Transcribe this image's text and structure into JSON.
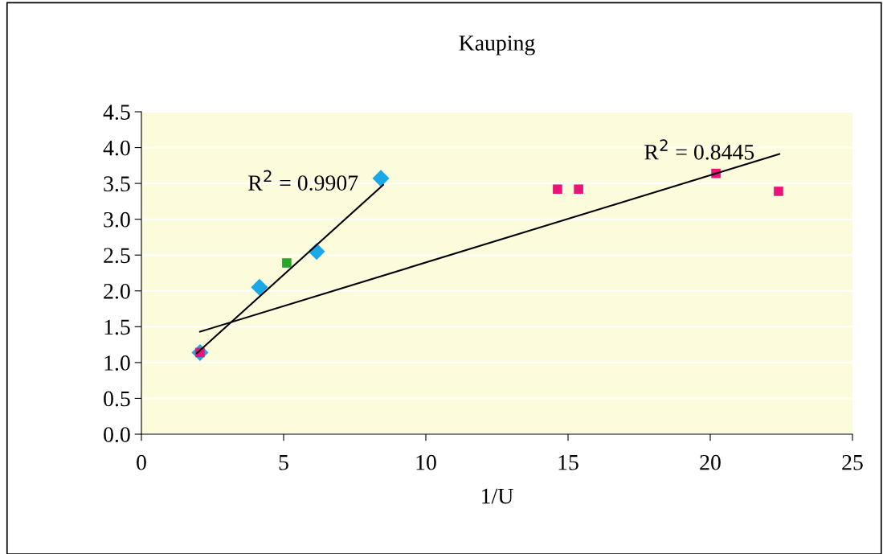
{
  "chart_data": {
    "type": "scatter",
    "title": "Kauping",
    "xlabel": "1/U",
    "xlim": [
      0,
      25
    ],
    "xticks": [
      0,
      5,
      10,
      15,
      20,
      25
    ],
    "ylim": [
      0,
      4.5
    ],
    "yticks": [
      {
        "value": 0,
        "label": "0.0"
      },
      {
        "value": 0.5,
        "label": "0.5"
      },
      {
        "value": 1,
        "label": "1.0"
      },
      {
        "value": 1.5,
        "label": "1.5"
      },
      {
        "value": 2,
        "label": "2.0"
      },
      {
        "value": 2.5,
        "label": "2.5"
      },
      {
        "value": 3,
        "label": "3.0"
      },
      {
        "value": 3.5,
        "label": "3.5"
      },
      {
        "value": 4,
        "label": "4.0"
      },
      {
        "value": 4.5,
        "label": "4.5"
      }
    ],
    "grid": "y",
    "legend": false,
    "series": [
      {
        "marker": "diamond",
        "color": "#1aa8e6",
        "x": [
          2.06,
          4.15,
          6.16,
          8.42
        ],
        "values": [
          1.14,
          2.05,
          2.55,
          3.57
        ]
      },
      {
        "marker": "square",
        "color": "#2aa52a",
        "x": [
          5.11
        ],
        "values": [
          2.39
        ]
      },
      {
        "marker": "square",
        "color": "#e8147a",
        "x": [
          2.06,
          14.63,
          15.37,
          20.2,
          22.4
        ],
        "values": [
          1.14,
          3.42,
          3.42,
          3.64,
          3.39
        ]
      },
      {
        "type": "line",
        "marker": "none",
        "color": "#000000",
        "x": [
          1.95,
          8.5
        ],
        "values": [
          1.13,
          3.48
        ]
      },
      {
        "type": "line",
        "marker": "none",
        "color": "#000000",
        "x": [
          2.06,
          22.43
        ],
        "values": [
          1.43,
          3.91
        ]
      }
    ],
    "annotations": [
      "R$^{2}$ = 0.9907",
      "R$^{2}$ = 0.8445"
    ]
  }
}
